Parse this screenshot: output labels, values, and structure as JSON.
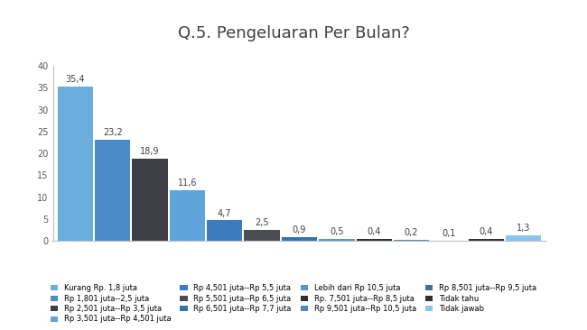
{
  "chart_data": {
    "type": "bar",
    "title": "Q.5. Pengeluaran Per Bulan?",
    "categories": [
      "Kurang Rp. 1,8 juta",
      "Rp 1,801 juta--2,5 juta",
      "Rp 2,501 juta--Rp 3,5 juta",
      "Rp 3,501 juta--Rp 4,501 juta",
      "Rp 4,501 juta--Rp 5,5 juta",
      "Rp 5,501 juta--Rp 6,5 juta",
      "Rp 6,501 juta--Rp 7,7 juta",
      "Lebih dari Rp 10,5 juta",
      "Rp. 7,501 juta--Rp 8,5 juta",
      "Rp 9,501 juta--Rp 10,5 juta",
      "Rp 8,501 juta--Rp 9,5 juta",
      "Tidak tahu",
      "Tidak jawab"
    ],
    "values": [
      35.4,
      23.2,
      18.9,
      11.6,
      4.7,
      2.5,
      0.9,
      0.5,
      0.4,
      0.2,
      0.1,
      0.4,
      1.3
    ],
    "value_labels": [
      "35,4",
      "23,2",
      "18,9",
      "11,6",
      "4,7",
      "2,5",
      "0,9",
      "0,5",
      "0,4",
      "0,2",
      "0,1",
      "0,4",
      "1,3"
    ],
    "colors": [
      "#6aaede",
      "#4a8cc7",
      "#3d3f44",
      "#5ea3dc",
      "#3b7cbf",
      "#4b4d52",
      "#3573ad",
      "#5b96c9",
      "#2f2f33",
      "#4f86c0",
      "#3e6f9e",
      "#303236",
      "#8cc3ec"
    ],
    "ylim": [
      0,
      40
    ],
    "yticks": [
      0,
      5,
      10,
      15,
      20,
      25,
      30,
      35,
      40
    ],
    "grid": false,
    "data_labels": true,
    "tick_labels": "y",
    "legend": "lower center"
  }
}
